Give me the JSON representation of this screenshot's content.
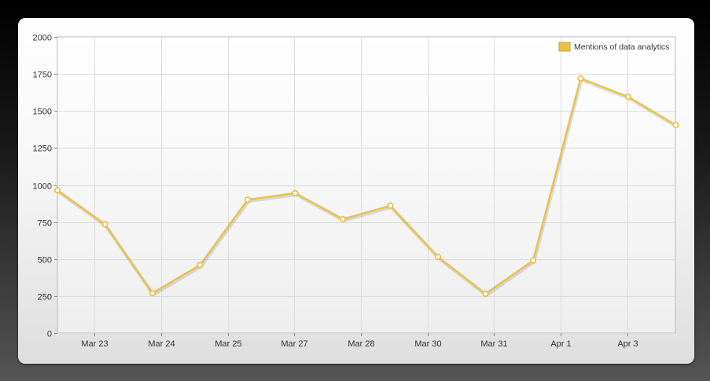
{
  "chart_data": {
    "type": "line",
    "title": "",
    "xlabel": "",
    "ylabel": "",
    "ylim": [
      0,
      2000
    ],
    "yticks": [
      0,
      250,
      500,
      750,
      1000,
      1250,
      1500,
      1750,
      2000
    ],
    "xtick_labels": [
      "Mar 23",
      "Mar 24",
      "Mar 25",
      "Mar 27",
      "Mar 28",
      "Mar 30",
      "Mar 31",
      "Apr 1",
      "Apr 3"
    ],
    "grid": true,
    "legend": "top-right",
    "series": [
      {
        "name": "Mentions of data analytics",
        "color": "#e8c24a",
        "values": [
          965,
          735,
          270,
          460,
          900,
          945,
          770,
          860,
          515,
          265,
          490,
          1720,
          1595,
          1405
        ]
      }
    ]
  }
}
